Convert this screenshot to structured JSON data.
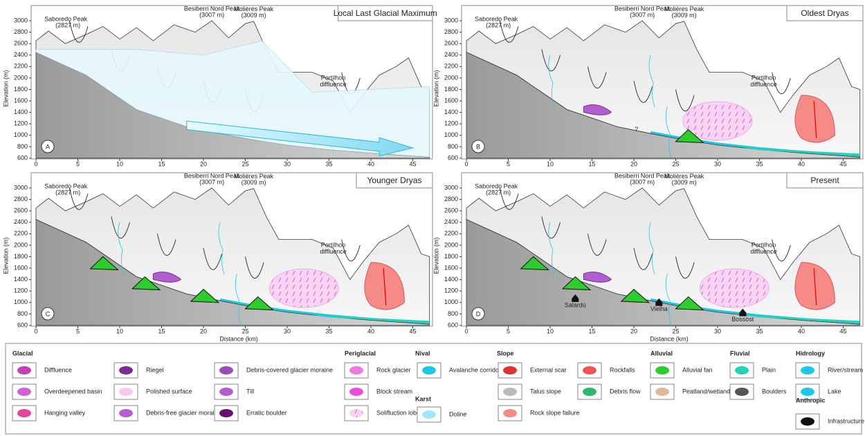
{
  "axes": {
    "x_label": "Distance (km)",
    "y_label": "Elevation (m)",
    "xticks": [
      0,
      5,
      10,
      15,
      20,
      25,
      30,
      35,
      40,
      45
    ],
    "yticks": [
      600,
      800,
      1000,
      1200,
      1400,
      1600,
      1800,
      2000,
      2200,
      2400,
      2600,
      2800,
      3000
    ]
  },
  "peaks": [
    {
      "name": "Saboredo Peak",
      "height": "(2827 m)"
    },
    {
      "name": "Besiberri Nord Peak",
      "height": "(3007 m)"
    },
    {
      "name": "Molières Peak",
      "height": "(3009 m)"
    }
  ],
  "diffluence": [
    "Portilhon",
    "diffluence"
  ],
  "panels": [
    {
      "title": "Local Last Glacial Maximum",
      "letter": "A",
      "places": []
    },
    {
      "title": "Oldest Dryas",
      "letter": "B",
      "places": [
        "?"
      ]
    },
    {
      "title": "Younger Dryas",
      "letter": "C",
      "places": []
    },
    {
      "title": "Present",
      "letter": "D",
      "places": [
        "Salardú",
        "Vielha",
        "Bossòst"
      ]
    }
  ],
  "legend": [
    {
      "title": "Glacial",
      "items": [
        "Diffluence",
        "Overdeepened basin",
        "Hanging valley",
        "Riegel",
        "Polished surface",
        "Debris-free glacier moraine",
        "Debris-covered glacier moraine",
        "Till",
        "Erratic boulder"
      ]
    },
    {
      "title": "Periglacial",
      "items": [
        "Rock glacier",
        "Block stream",
        "Solifluction lobes"
      ]
    },
    {
      "title": "Nival",
      "items": [
        "Avalanche corridor"
      ]
    },
    {
      "title": "Karst",
      "items": [
        "Doline"
      ]
    },
    {
      "title": "Slope",
      "items": [
        "External scar",
        "Talus slope",
        "Rock slope failure",
        "Rockfalls",
        "Debris flow"
      ]
    },
    {
      "title": "Alluvial",
      "items": [
        "Alluvial fan",
        "Peatland/wetland"
      ]
    },
    {
      "title": "Fluvial",
      "items": [
        "Plain",
        "Boulders"
      ]
    },
    {
      "title": "Hidrology",
      "items": [
        "River/stream",
        "Lake"
      ]
    },
    {
      "title": "Anthropic",
      "items": [
        "Infrastructure"
      ]
    }
  ]
}
